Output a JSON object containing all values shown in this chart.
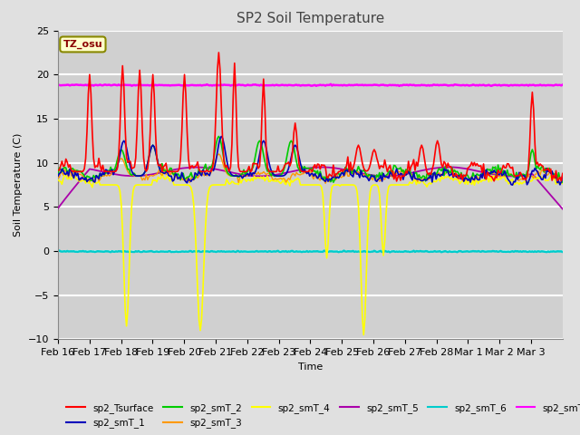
{
  "title": "SP2 Soil Temperature",
  "ylabel": "Soil Temperature (C)",
  "xlabel": "Time",
  "ylim": [
    -10,
    25
  ],
  "fig_bg": "#e0e0e0",
  "plot_bg": "#d0d0d0",
  "tz_label": "TZ_osu",
  "x_ticks": [
    "Feb 16",
    "Feb 17",
    "Feb 18",
    "Feb 19",
    "Feb 20",
    "Feb 21",
    "Feb 22",
    "Feb 23",
    "Feb 24",
    "Feb 25",
    "Feb 26",
    "Feb 27",
    "Feb 28",
    "Mar 1",
    "Mar 2",
    "Mar 3"
  ],
  "series_colors": {
    "sp2_Tsurface": "#ff0000",
    "sp2_smT_1": "#0000bb",
    "sp2_smT_2": "#00cc00",
    "sp2_smT_3": "#ff9900",
    "sp2_smT_4": "#ffff00",
    "sp2_smT_5": "#aa00aa",
    "sp2_smT_6": "#00cccc",
    "sp2_smT_7": "#ff00ff"
  }
}
